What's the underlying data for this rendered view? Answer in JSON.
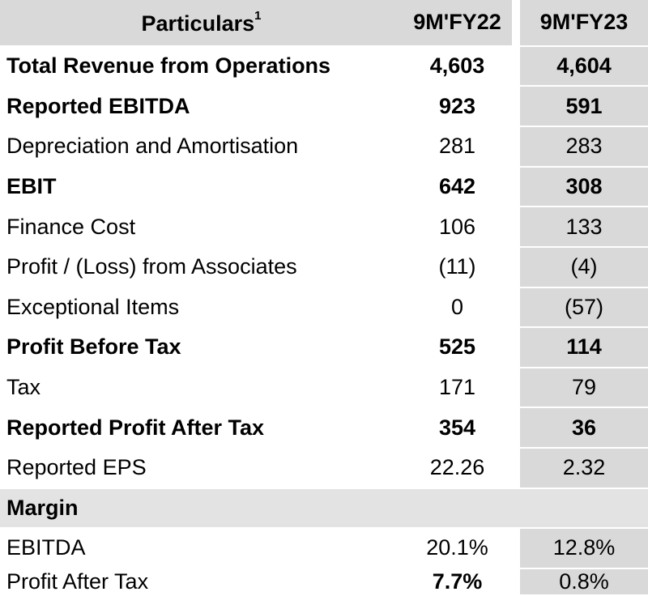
{
  "table": {
    "header": {
      "particulars": "Particulars",
      "particulars_sup": "1",
      "col1": "9M'FY22",
      "col2": "9M'FY23"
    },
    "rows": [
      {
        "label": "Total Revenue from Operations",
        "fy22": "4,603",
        "fy23": "4,604"
      },
      {
        "label": "Reported EBITDA",
        "fy22": "923",
        "fy23": "591"
      },
      {
        "label": "Depreciation and Amortisation",
        "fy22": "281",
        "fy23": "283"
      },
      {
        "label": "EBIT",
        "fy22": "642",
        "fy23": "308"
      },
      {
        "label": "Finance Cost",
        "fy22": "106",
        "fy23": "133"
      },
      {
        "label": "Profit / (Loss) from Associates",
        "fy22": "(11)",
        "fy23": "(4)"
      },
      {
        "label": "Exceptional Items",
        "fy22": "0",
        "fy23": "(57)"
      },
      {
        "label": "Profit Before Tax",
        "fy22": "525",
        "fy23": "114"
      },
      {
        "label": "Tax",
        "fy22": "171",
        "fy23": "79"
      },
      {
        "label": "Reported Profit After Tax",
        "fy22": "354",
        "fy23": "36"
      },
      {
        "label": "Reported EPS",
        "fy22": "22.26",
        "fy23": "2.32"
      }
    ],
    "margin_section": "Margin",
    "margin_rows": [
      {
        "label": "EBITDA",
        "fy22": "20.1%",
        "fy23": "12.8%"
      },
      {
        "label": "Profit After Tax",
        "fy22": "7.7%",
        "fy23": "0.8%"
      }
    ]
  },
  "colors": {
    "header_bg": "#d9d9d9",
    "col2_bg": "#d9d9d9",
    "section_bg": "#e3e3e3"
  }
}
